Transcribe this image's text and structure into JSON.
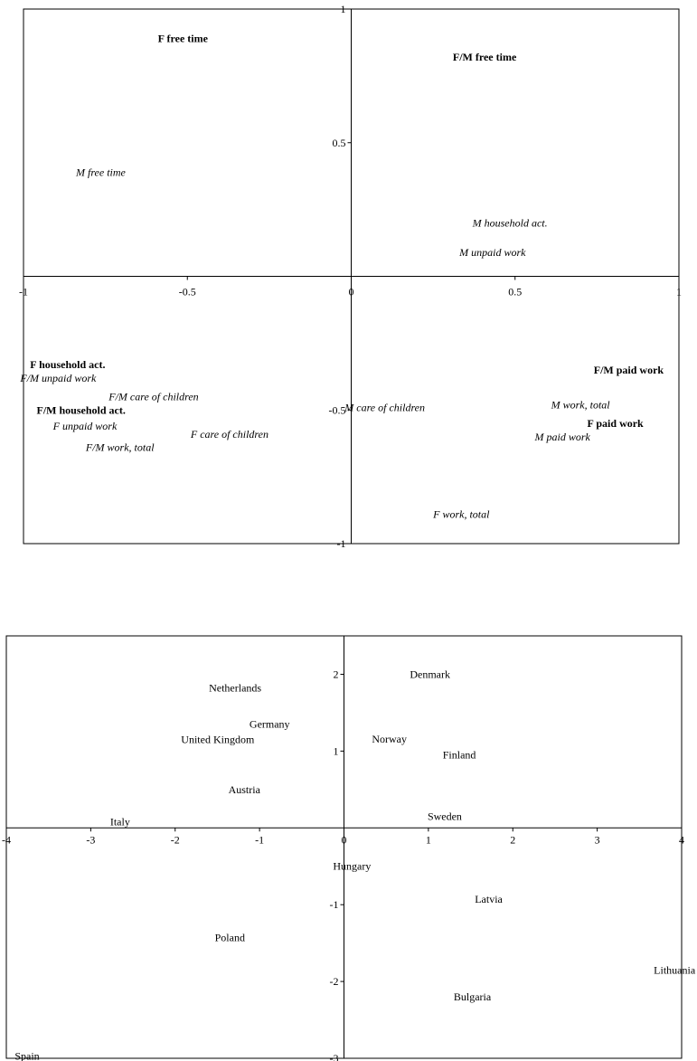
{
  "chart_data": [
    {
      "type": "scatter",
      "title": "",
      "xlabel": "",
      "ylabel": "",
      "xlim": [
        -1,
        1
      ],
      "ylim": [
        -1,
        1
      ],
      "grid": false,
      "x_ticks": [
        {
          "value": -1,
          "label": "-1"
        },
        {
          "value": -0.5,
          "label": "-0.5"
        },
        {
          "value": 0,
          "label": "0"
        },
        {
          "value": 0.5,
          "label": "0.5"
        },
        {
          "value": 1,
          "label": "1"
        }
      ],
      "y_ticks": [
        {
          "value": 1,
          "label": "1"
        },
        {
          "value": 0.5,
          "label": "0.5"
        },
        {
          "value": -0.5,
          "label": "-0.5"
        },
        {
          "value": -1,
          "label": "-1"
        }
      ],
      "points": [
        {
          "label": "F free time",
          "x": -0.59,
          "y": 0.89,
          "style": "bold"
        },
        {
          "label": "F/M  free time",
          "x": 0.31,
          "y": 0.82,
          "style": "bold"
        },
        {
          "label": "M free time",
          "x": -0.84,
          "y": 0.39,
          "style": "italic"
        },
        {
          "label": "M household act.",
          "x": 0.37,
          "y": 0.2,
          "style": "italic"
        },
        {
          "label": "M unpaid work",
          "x": 0.33,
          "y": 0.09,
          "style": "italic"
        },
        {
          "label": "F household act.",
          "x": -0.98,
          "y": -0.33,
          "style": "bold"
        },
        {
          "label": "F/M unpaid work",
          "x": -1.01,
          "y": -0.38,
          "style": "italic"
        },
        {
          "label": "F/M care of children",
          "x": -0.74,
          "y": -0.45,
          "style": "italic"
        },
        {
          "label": "F/M household act.",
          "x": -0.96,
          "y": -0.5,
          "style": "bold"
        },
        {
          "label": "M care of children",
          "x": -0.02,
          "y": -0.49,
          "style": "italic"
        },
        {
          "label": "F unpaid work",
          "x": -0.91,
          "y": -0.56,
          "style": "italic"
        },
        {
          "label": "F care of children",
          "x": -0.49,
          "y": -0.59,
          "style": "italic"
        },
        {
          "label": "F/M work, total",
          "x": -0.81,
          "y": -0.64,
          "style": "italic"
        },
        {
          "label": "F/M paid work",
          "x": 0.74,
          "y": -0.35,
          "style": "bold"
        },
        {
          "label": "M work, total",
          "x": 0.61,
          "y": -0.48,
          "style": "italic"
        },
        {
          "label": "F paid work",
          "x": 0.72,
          "y": -0.55,
          "style": "bold"
        },
        {
          "label": "M paid work",
          "x": 0.56,
          "y": -0.6,
          "style": "italic"
        },
        {
          "label": "F work, total",
          "x": 0.25,
          "y": -0.89,
          "style": "italic"
        }
      ]
    },
    {
      "type": "scatter",
      "title": "",
      "xlabel": "",
      "ylabel": "",
      "xlim": [
        -4,
        4
      ],
      "ylim": [
        -3,
        2.5
      ],
      "grid": false,
      "x_ticks": [
        {
          "value": -4,
          "label": "-4"
        },
        {
          "value": -3,
          "label": "-3"
        },
        {
          "value": -2,
          "label": "-2"
        },
        {
          "value": -1,
          "label": "-1"
        },
        {
          "value": 0,
          "label": "0"
        },
        {
          "value": 1,
          "label": "1"
        },
        {
          "value": 2,
          "label": "2"
        },
        {
          "value": 3,
          "label": "3"
        },
        {
          "value": 4,
          "label": "4"
        }
      ],
      "y_ticks": [
        {
          "value": 2,
          "label": "2"
        },
        {
          "value": 1,
          "label": "1"
        },
        {
          "value": -1,
          "label": "-1"
        },
        {
          "value": -2,
          "label": "-2"
        },
        {
          "value": -3,
          "label": "-3"
        }
      ],
      "points": [
        {
          "label": "Denmark",
          "x": 0.78,
          "y": 2.0,
          "style": "normal"
        },
        {
          "label": "Netherlands",
          "x": -1.6,
          "y": 1.82,
          "style": "normal"
        },
        {
          "label": "Germany",
          "x": -1.12,
          "y": 1.35,
          "style": "normal"
        },
        {
          "label": "United Kingdom",
          "x": -1.93,
          "y": 1.15,
          "style": "normal"
        },
        {
          "label": "Norway",
          "x": 0.33,
          "y": 1.16,
          "style": "normal"
        },
        {
          "label": "Finland",
          "x": 1.17,
          "y": 0.95,
          "style": "normal"
        },
        {
          "label": "Austria",
          "x": -1.37,
          "y": 0.5,
          "style": "normal"
        },
        {
          "label": "Sweden",
          "x": 0.99,
          "y": 0.15,
          "style": "normal"
        },
        {
          "label": "Italy",
          "x": -2.77,
          "y": 0.08,
          "style": "normal"
        },
        {
          "label": "Hungary",
          "x": -0.13,
          "y": -0.5,
          "style": "normal"
        },
        {
          "label": "Latvia",
          "x": 1.55,
          "y": -0.93,
          "style": "normal"
        },
        {
          "label": "Poland",
          "x": -1.53,
          "y": -1.43,
          "style": "normal"
        },
        {
          "label": "Lithuania",
          "x": 3.67,
          "y": -1.85,
          "style": "normal"
        },
        {
          "label": "Bulgaria",
          "x": 1.3,
          "y": -2.2,
          "style": "normal"
        },
        {
          "label": "Spain",
          "x": -3.9,
          "y": -2.97,
          "style": "normal"
        }
      ]
    }
  ]
}
